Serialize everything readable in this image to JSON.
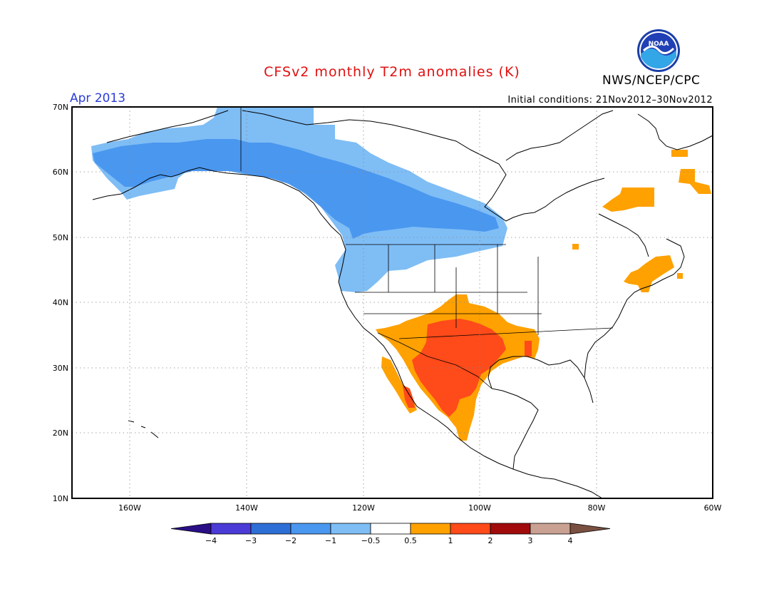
{
  "title": "CFSv2 monthly T2m anomalies (K)",
  "agency": "NWS/NCEP/CPC",
  "logo_text": "NOAA",
  "valid_month": "Apr 2013",
  "initial_conditions": "Initial conditions: 21Nov2012–30Nov2012",
  "map": {
    "lon_range": [
      -170,
      -60
    ],
    "lat_range": [
      10,
      70
    ],
    "lat_labels": [
      "10N",
      "20N",
      "30N",
      "40N",
      "50N",
      "60N",
      "70N"
    ],
    "lon_labels": [
      "160W",
      "140W",
      "120W",
      "100W",
      "80W",
      "60W"
    ]
  },
  "legend": {
    "tick_labels": [
      "−4",
      "−3",
      "−2",
      "−1",
      "−0.5",
      "0.5",
      "1",
      "2",
      "3",
      "4"
    ],
    "colors": [
      "#2a0e86",
      "#4a3bd6",
      "#2e6fd6",
      "#4a97ef",
      "#7fbdf5",
      "#ffffff",
      "#ffa100",
      "#ff4a1a",
      "#a10b0b",
      "#c9a192",
      "#7a5040"
    ]
  },
  "colors": {
    "cold_light": "#7fbdf5",
    "cold_mid": "#4a97ef",
    "warm_light": "#ffa100",
    "warm_mid": "#ff4a1a"
  }
}
